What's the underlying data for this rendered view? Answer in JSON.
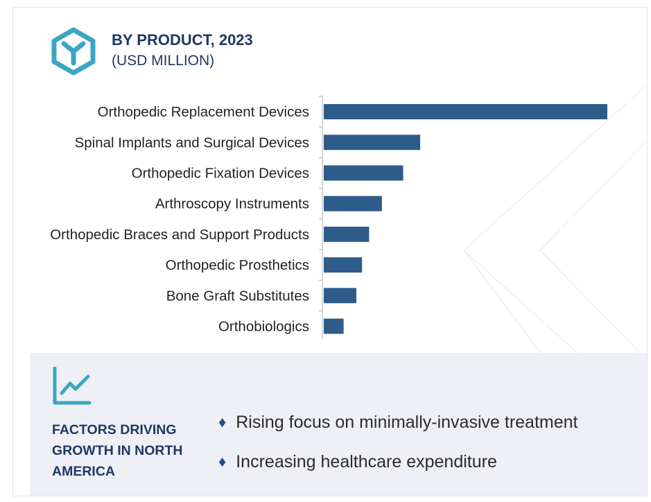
{
  "header": {
    "title": "BY PRODUCT, 2023",
    "subtitle": "(USD MILLION)"
  },
  "icons": {
    "logo": "hexagon-y-logo-icon",
    "trend": "trend-line-chart-icon",
    "bullet": "diamond-bullet-icon"
  },
  "colors": {
    "bar": "#2e5c8a",
    "title": "#1f3864",
    "accent": "#3aa6c4",
    "panel_bg": "#eef0f5"
  },
  "chart_data": {
    "type": "bar",
    "orientation": "horizontal",
    "title": "BY PRODUCT, 2023",
    "subtitle": "(USD MILLION)",
    "categories": [
      "Orthopedic Replacement Devices",
      "Spinal Implants and Surgical Devices",
      "Orthopedic Fixation Devices",
      "Arthroscopy Instruments",
      "Orthopedic Braces and Support Products",
      "Orthopedic Prosthetics",
      "Bone Graft Substitutes",
      "Orthobiologics"
    ],
    "values": [
      100,
      34,
      28,
      20.5,
      16,
      13.5,
      11.5,
      7
    ],
    "xlim": [
      0,
      100
    ],
    "grid": false,
    "legend": "none",
    "value_axis_labels": false
  },
  "factors": {
    "title": "FACTORS DRIVING GROWTH IN NORTH AMERICA",
    "bullet": "♦",
    "items": [
      "Rising focus on minimally-invasive treatment",
      "Increasing healthcare expenditure"
    ]
  }
}
